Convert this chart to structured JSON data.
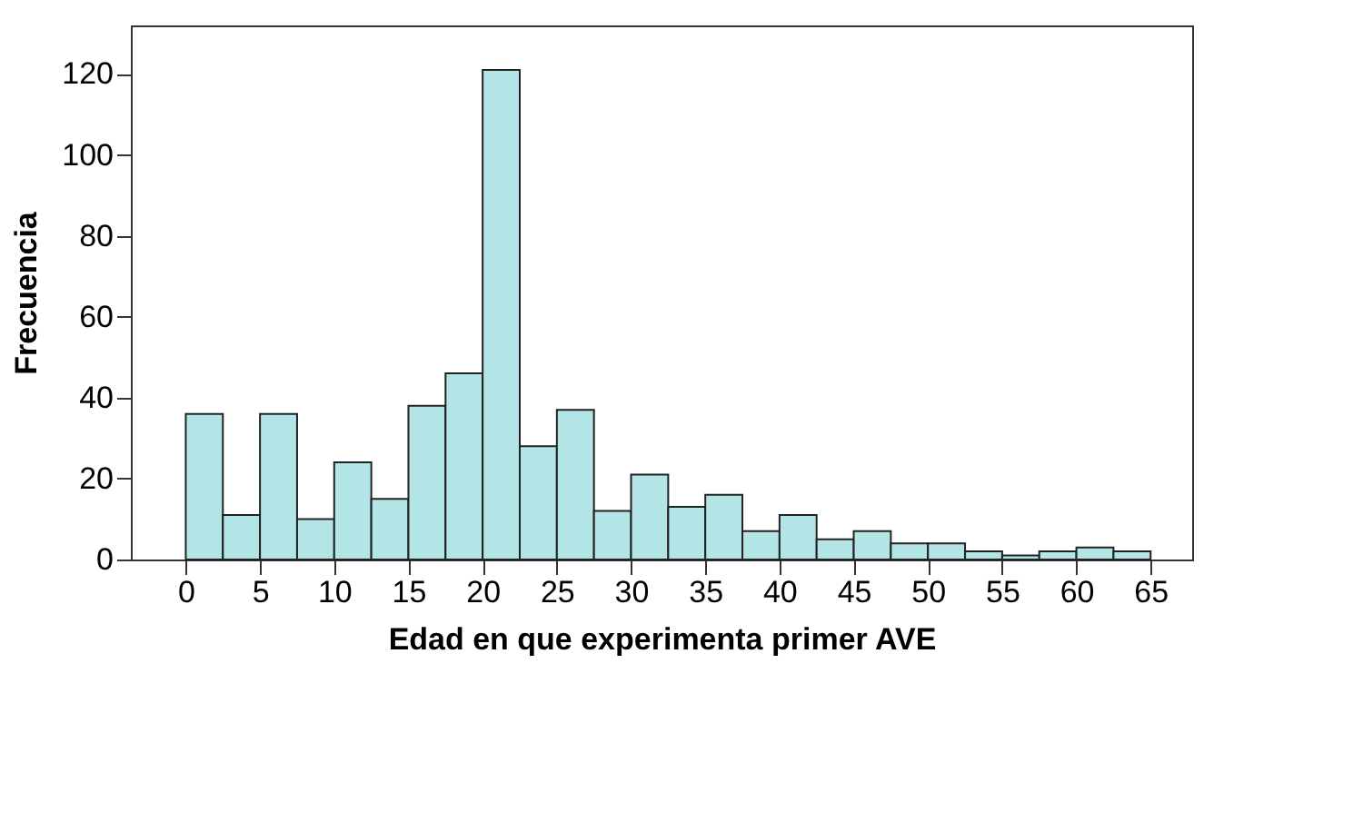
{
  "chart_data": {
    "type": "histogram",
    "xlabel": "Edad en que experimenta primer AVE",
    "ylabel": "Frecuencia",
    "bins": [
      0,
      2.5,
      5,
      7.5,
      10,
      12.5,
      15,
      17.5,
      20,
      22.5,
      25,
      27.5,
      30,
      32.5,
      35,
      37.5,
      40,
      42.5,
      45,
      47.5,
      50,
      52.5,
      55,
      57.5,
      60,
      62.5,
      65
    ],
    "values": [
      36,
      11,
      36,
      10,
      24,
      15,
      38,
      46,
      121,
      28,
      37,
      12,
      21,
      13,
      16,
      7,
      11,
      5,
      7,
      4,
      4,
      2,
      1,
      2,
      3,
      2
    ],
    "color": "#b4e5e6",
    "xlim": [
      -3.7,
      67.8
    ],
    "xticks": [
      0,
      5,
      10,
      15,
      20,
      25,
      30,
      35,
      40,
      45,
      50,
      55,
      60,
      65
    ],
    "ylim": [
      0,
      132
    ],
    "yticks": [
      0,
      20,
      40,
      60,
      80,
      100,
      120
    ],
    "grid": false
  }
}
